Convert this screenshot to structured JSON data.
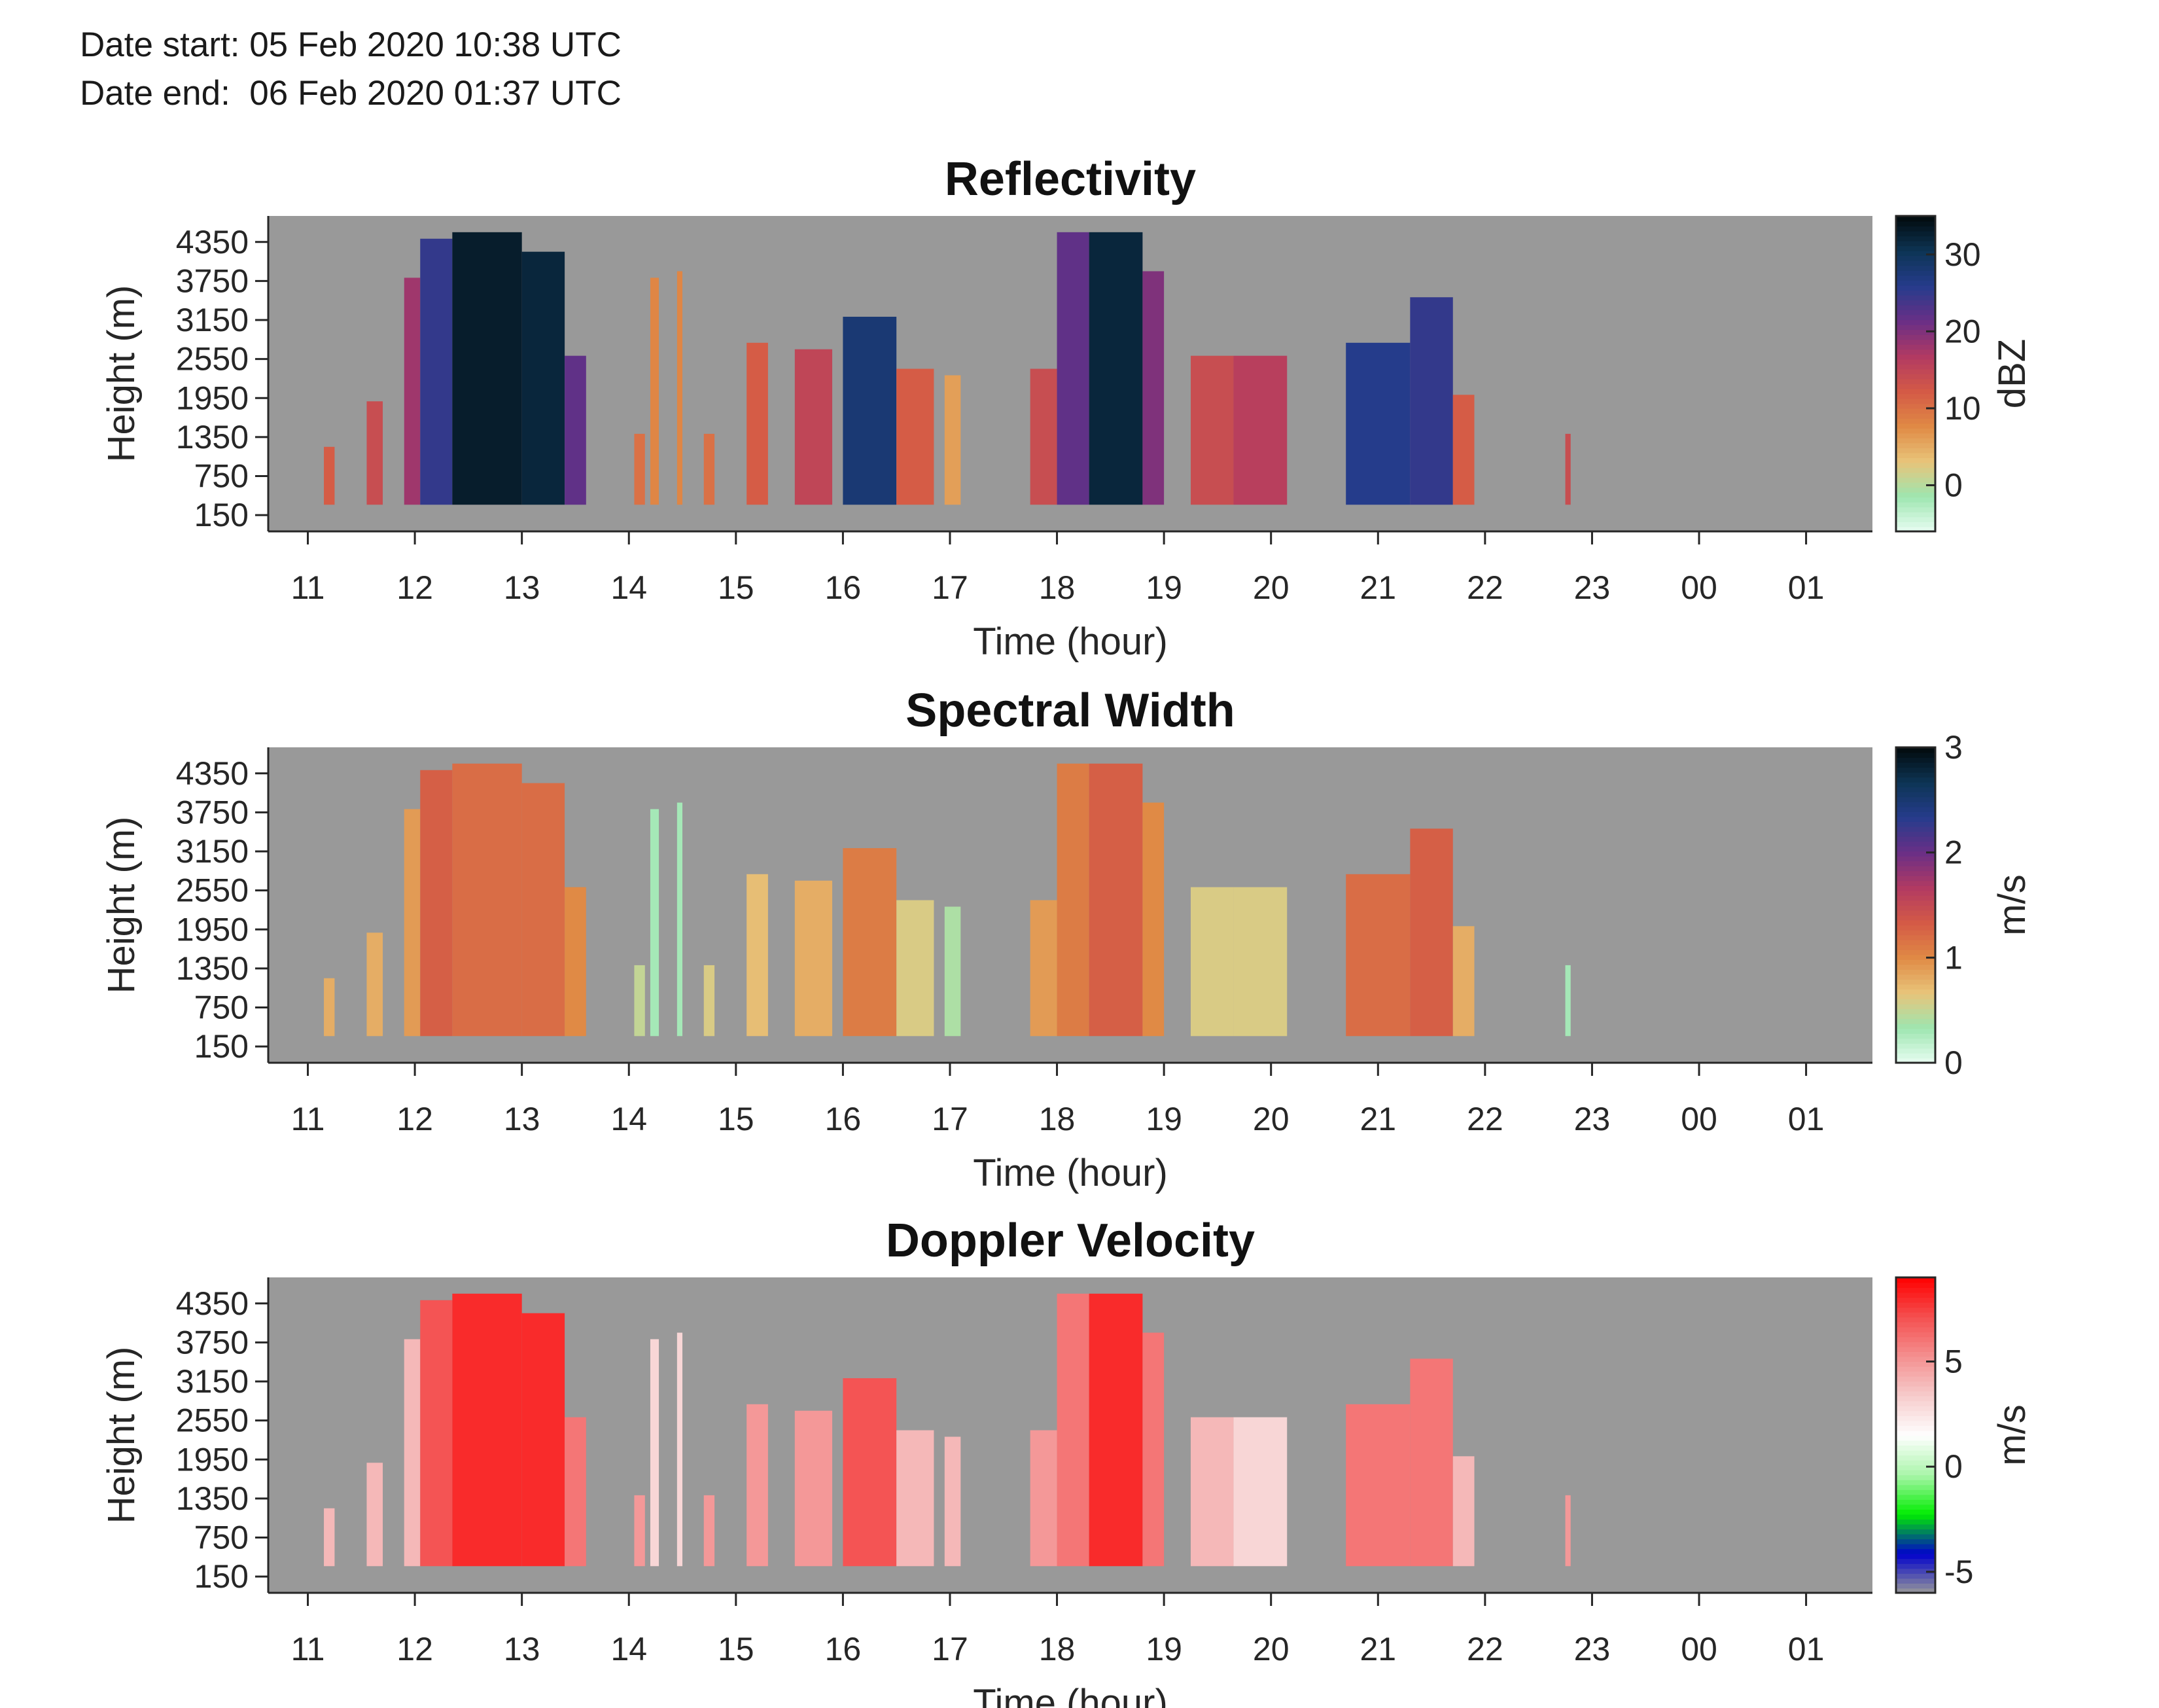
{
  "header": {
    "date_start": "Date start: 05 Feb 2020 10:38 UTC",
    "date_end": "Date end:  06 Feb 2020 01:37 UTC"
  },
  "colors": {
    "no_data": "#999999",
    "axis": "#262626",
    "refl_colormap": [
      "#e8fdf2",
      "#9ee6b0",
      "#e8c47a",
      "#e08a45",
      "#d45a46",
      "#b23a62",
      "#6a2f86",
      "#263c8c",
      "#0d3555",
      "#020a0c"
    ],
    "width_colormap": [
      "#e8fdf2",
      "#9ee6b0",
      "#e8c47a",
      "#e08a45",
      "#d45a46",
      "#b23a62",
      "#6a2f86",
      "#263c8c",
      "#0d3555",
      "#020a0c"
    ],
    "vel_colormap": [
      "#999999",
      "#0000cc",
      "#00ee00",
      "#aaf5aa",
      "#ffffff",
      "#f6cccc",
      "#f49090",
      "#f45050",
      "#ff0000"
    ]
  },
  "chart_data": [
    {
      "type": "heatmap",
      "title": "Reflectivity",
      "xlabel": "Time (hour)",
      "ylabel": "Height (m)",
      "x_ticks": [
        "11",
        "12",
        "13",
        "14",
        "15",
        "16",
        "17",
        "18",
        "19",
        "20",
        "21",
        "22",
        "23",
        "00",
        "01"
      ],
      "y_ticks": [
        "4350",
        "3750",
        "3150",
        "2550",
        "1950",
        "1350",
        "750",
        "150"
      ],
      "colorbar": {
        "label": "dBZ",
        "range": [
          -6,
          35
        ],
        "ticks": [
          "30",
          "20",
          "10",
          "0"
        ],
        "tick_values": [
          30,
          20,
          10,
          0
        ]
      },
      "echo_segments": [
        {
          "start": 11.15,
          "end": 11.25,
          "top": 1200,
          "value": 12
        },
        {
          "start": 11.55,
          "end": 11.7,
          "top": 1900,
          "value": 14
        },
        {
          "start": 11.9,
          "end": 12.05,
          "top": 3800,
          "value": 18
        },
        {
          "start": 12.05,
          "end": 12.35,
          "top": 4400,
          "value": 25
        },
        {
          "start": 12.35,
          "end": 13.0,
          "top": 4500,
          "value": 33
        },
        {
          "start": 13.0,
          "end": 13.4,
          "top": 4200,
          "value": 32
        },
        {
          "start": 13.4,
          "end": 13.6,
          "top": 2600,
          "value": 22
        },
        {
          "start": 14.05,
          "end": 14.15,
          "top": 1400,
          "value": 10
        },
        {
          "start": 14.2,
          "end": 14.28,
          "top": 3800,
          "value": 8
        },
        {
          "start": 14.45,
          "end": 14.5,
          "top": 3900,
          "value": 8
        },
        {
          "start": 14.7,
          "end": 14.8,
          "top": 1400,
          "value": 10
        },
        {
          "start": 15.1,
          "end": 15.3,
          "top": 2800,
          "value": 12
        },
        {
          "start": 15.55,
          "end": 15.9,
          "top": 2700,
          "value": 15
        },
        {
          "start": 16.0,
          "end": 16.5,
          "top": 3200,
          "value": 28
        },
        {
          "start": 16.5,
          "end": 16.85,
          "top": 2400,
          "value": 12
        },
        {
          "start": 16.95,
          "end": 17.1,
          "top": 2300,
          "value": 6
        },
        {
          "start": 17.75,
          "end": 18.0,
          "top": 2400,
          "value": 14
        },
        {
          "start": 18.0,
          "end": 18.3,
          "top": 4500,
          "value": 22
        },
        {
          "start": 18.3,
          "end": 18.8,
          "top": 4500,
          "value": 32
        },
        {
          "start": 18.8,
          "end": 19.0,
          "top": 3900,
          "value": 20
        },
        {
          "start": 19.25,
          "end": 19.65,
          "top": 2600,
          "value": 14
        },
        {
          "start": 19.65,
          "end": 20.15,
          "top": 2600,
          "value": 16
        },
        {
          "start": 20.7,
          "end": 21.3,
          "top": 2800,
          "value": 26
        },
        {
          "start": 21.3,
          "end": 21.7,
          "top": 3500,
          "value": 25
        },
        {
          "start": 21.7,
          "end": 21.9,
          "top": 2000,
          "value": 12
        },
        {
          "start": 22.75,
          "end": 22.8,
          "top": 1400,
          "value": 14
        }
      ]
    },
    {
      "type": "heatmap",
      "title": "Spectral Width",
      "xlabel": "Time (hour)",
      "ylabel": "Height (m)",
      "x_ticks": [
        "11",
        "12",
        "13",
        "14",
        "15",
        "16",
        "17",
        "18",
        "19",
        "20",
        "21",
        "22",
        "23",
        "00",
        "01"
      ],
      "y_ticks": [
        "4350",
        "3750",
        "3150",
        "2550",
        "1950",
        "1350",
        "750",
        "150"
      ],
      "colorbar": {
        "label": "m/s",
        "range": [
          0,
          3
        ],
        "ticks": [
          "3",
          "2",
          "1",
          "0"
        ],
        "tick_values": [
          3,
          2,
          1,
          0
        ]
      },
      "echo_segments": [
        {
          "start": 11.15,
          "end": 11.25,
          "top": 1200,
          "value": 0.8
        },
        {
          "start": 11.55,
          "end": 11.7,
          "top": 1900,
          "value": 0.8
        },
        {
          "start": 11.9,
          "end": 12.05,
          "top": 3800,
          "value": 0.9
        },
        {
          "start": 12.05,
          "end": 12.35,
          "top": 4400,
          "value": 1.3
        },
        {
          "start": 12.35,
          "end": 13.0,
          "top": 4500,
          "value": 1.2
        },
        {
          "start": 13.0,
          "end": 13.4,
          "top": 4200,
          "value": 1.2
        },
        {
          "start": 13.4,
          "end": 13.6,
          "top": 2600,
          "value": 1.0
        },
        {
          "start": 14.05,
          "end": 14.15,
          "top": 1400,
          "value": 0.5
        },
        {
          "start": 14.2,
          "end": 14.28,
          "top": 3800,
          "value": 0.3
        },
        {
          "start": 14.45,
          "end": 14.5,
          "top": 3900,
          "value": 0.3
        },
        {
          "start": 14.7,
          "end": 14.8,
          "top": 1400,
          "value": 0.6
        },
        {
          "start": 15.1,
          "end": 15.3,
          "top": 2800,
          "value": 0.7
        },
        {
          "start": 15.55,
          "end": 15.9,
          "top": 2700,
          "value": 0.8
        },
        {
          "start": 16.0,
          "end": 16.5,
          "top": 3200,
          "value": 1.1
        },
        {
          "start": 16.5,
          "end": 16.85,
          "top": 2400,
          "value": 0.6
        },
        {
          "start": 16.95,
          "end": 17.1,
          "top": 2300,
          "value": 0.4
        },
        {
          "start": 17.75,
          "end": 18.0,
          "top": 2400,
          "value": 0.9
        },
        {
          "start": 18.0,
          "end": 18.3,
          "top": 4500,
          "value": 1.1
        },
        {
          "start": 18.3,
          "end": 18.8,
          "top": 4500,
          "value": 1.3
        },
        {
          "start": 18.8,
          "end": 19.0,
          "top": 3900,
          "value": 1.0
        },
        {
          "start": 19.25,
          "end": 19.65,
          "top": 2600,
          "value": 0.6
        },
        {
          "start": 19.65,
          "end": 20.15,
          "top": 2600,
          "value": 0.6
        },
        {
          "start": 20.7,
          "end": 21.3,
          "top": 2800,
          "value": 1.2
        },
        {
          "start": 21.3,
          "end": 21.7,
          "top": 3500,
          "value": 1.3
        },
        {
          "start": 21.7,
          "end": 21.9,
          "top": 2000,
          "value": 0.8
        },
        {
          "start": 22.75,
          "end": 22.8,
          "top": 1400,
          "value": 0.3
        }
      ]
    },
    {
      "type": "heatmap",
      "title": "Doppler Velocity",
      "xlabel": "Time (hour)",
      "ylabel": "Height (m)",
      "x_ticks": [
        "11",
        "12",
        "13",
        "14",
        "15",
        "16",
        "17",
        "18",
        "19",
        "20",
        "21",
        "22",
        "23",
        "00",
        "01"
      ],
      "y_ticks": [
        "4350",
        "3750",
        "3150",
        "2550",
        "1950",
        "1350",
        "750",
        "150"
      ],
      "colorbar": {
        "label": "m/s",
        "range": [
          -6,
          9
        ],
        "ticks": [
          "5",
          "0",
          "-5"
        ],
        "tick_values": [
          5,
          0,
          -5
        ]
      },
      "echo_segments": [
        {
          "start": 11.15,
          "end": 11.25,
          "top": 1200,
          "value": 4
        },
        {
          "start": 11.55,
          "end": 11.7,
          "top": 1900,
          "value": 4
        },
        {
          "start": 11.9,
          "end": 12.05,
          "top": 3800,
          "value": 4
        },
        {
          "start": 12.05,
          "end": 12.35,
          "top": 4400,
          "value": 7
        },
        {
          "start": 12.35,
          "end": 13.0,
          "top": 4500,
          "value": 8
        },
        {
          "start": 13.0,
          "end": 13.4,
          "top": 4200,
          "value": 8
        },
        {
          "start": 13.4,
          "end": 13.6,
          "top": 2600,
          "value": 6
        },
        {
          "start": 14.05,
          "end": 14.15,
          "top": 1400,
          "value": 5
        },
        {
          "start": 14.2,
          "end": 14.28,
          "top": 3800,
          "value": 3
        },
        {
          "start": 14.45,
          "end": 14.5,
          "top": 3900,
          "value": 3
        },
        {
          "start": 14.7,
          "end": 14.8,
          "top": 1400,
          "value": 5
        },
        {
          "start": 15.1,
          "end": 15.3,
          "top": 2800,
          "value": 5
        },
        {
          "start": 15.55,
          "end": 15.9,
          "top": 2700,
          "value": 5
        },
        {
          "start": 16.0,
          "end": 16.5,
          "top": 3200,
          "value": 7
        },
        {
          "start": 16.5,
          "end": 16.85,
          "top": 2400,
          "value": 4
        },
        {
          "start": 16.95,
          "end": 17.1,
          "top": 2300,
          "value": 4
        },
        {
          "start": 17.75,
          "end": 18.0,
          "top": 2400,
          "value": 5
        },
        {
          "start": 18.0,
          "end": 18.3,
          "top": 4500,
          "value": 6
        },
        {
          "start": 18.3,
          "end": 18.8,
          "top": 4500,
          "value": 8
        },
        {
          "start": 18.8,
          "end": 19.0,
          "top": 3900,
          "value": 6
        },
        {
          "start": 19.25,
          "end": 19.65,
          "top": 2600,
          "value": 4
        },
        {
          "start": 19.65,
          "end": 20.15,
          "top": 2600,
          "value": 3
        },
        {
          "start": 20.7,
          "end": 21.3,
          "top": 2800,
          "value": 6
        },
        {
          "start": 21.3,
          "end": 21.7,
          "top": 3500,
          "value": 6
        },
        {
          "start": 21.7,
          "end": 21.9,
          "top": 2000,
          "value": 4
        },
        {
          "start": 22.75,
          "end": 22.8,
          "top": 1400,
          "value": 5
        }
      ]
    }
  ]
}
